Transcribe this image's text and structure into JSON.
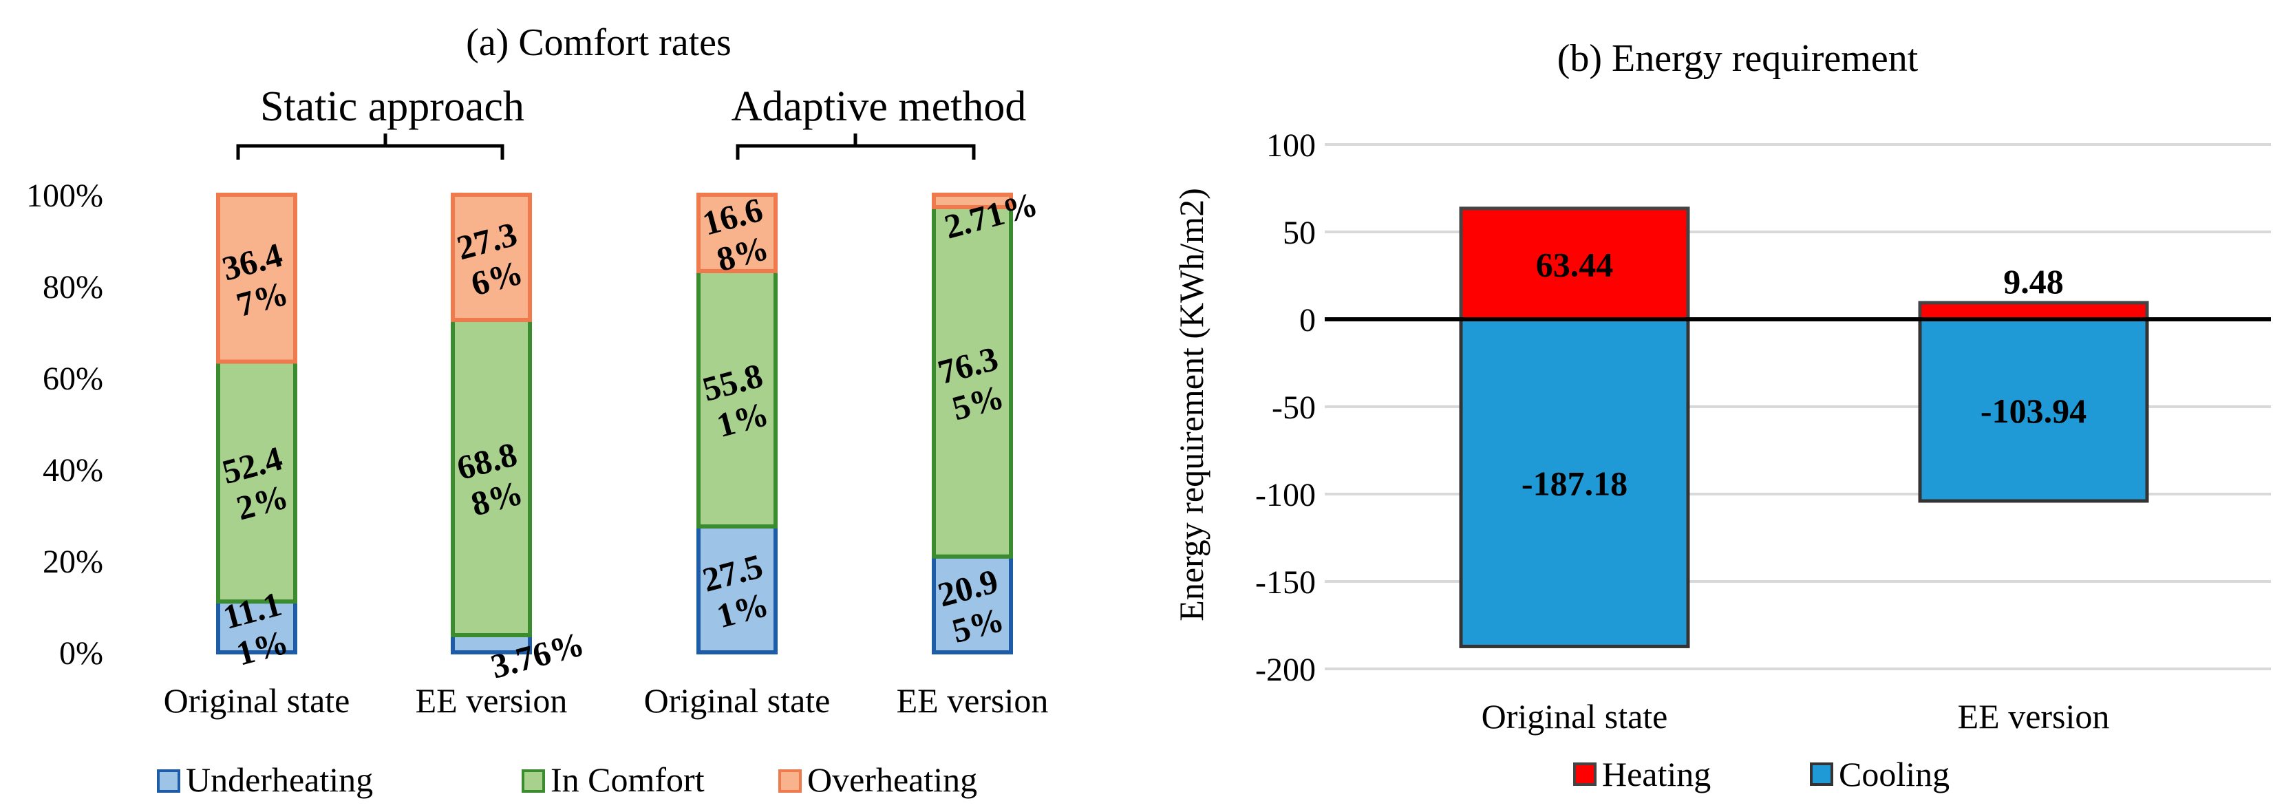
{
  "chart_data": [
    {
      "id": "comfort",
      "type": "bar",
      "stacked": true,
      "title": "(a) Comfort rates",
      "groups": [
        {
          "label": "Static approach",
          "bars": [
            0,
            1
          ]
        },
        {
          "label": "Adaptive method",
          "bars": [
            2,
            3
          ]
        }
      ],
      "categories": [
        "Original state",
        "EE version",
        "Original state",
        "EE version"
      ],
      "ylim": [
        0,
        100
      ],
      "yticks": [
        0,
        20,
        40,
        60,
        80,
        100
      ],
      "ytick_labels": [
        "0%",
        "20%",
        "40%",
        "60%",
        "80%",
        "100%"
      ],
      "series": [
        {
          "name": "Underheating",
          "color": "#9dc3e6",
          "edge": "#1f5ca8",
          "values": [
            11.11,
            3.76,
            27.51,
            20.95
          ],
          "labels": [
            [
              "11.1",
              "1%"
            ],
            [
              "3.76%"
            ],
            [
              "27.5",
              "1%"
            ],
            [
              "20.9",
              "5%"
            ]
          ]
        },
        {
          "name": "In Comfort",
          "color": "#a9d18e",
          "edge": "#3a8c2f",
          "values": [
            52.42,
            68.88,
            55.81,
            76.35
          ],
          "labels": [
            [
              "52.4",
              "2%"
            ],
            [
              "68.8",
              "8%"
            ],
            [
              "55.8",
              "1%"
            ],
            [
              "76.3",
              "5%"
            ]
          ]
        },
        {
          "name": "Overheating",
          "color": "#f8b38d",
          "edge": "#ef7a4d",
          "values": [
            36.47,
            27.36,
            16.68,
            2.71
          ],
          "labels": [
            [
              "36.4",
              "7%"
            ],
            [
              "27.3",
              "6%"
            ],
            [
              "16.6",
              "8%"
            ],
            [
              "2.71%"
            ]
          ]
        }
      ]
    },
    {
      "id": "energy",
      "type": "bar",
      "stacked": true,
      "title": "(b) Energy requirement",
      "ylabel": "Energy requirement (KWh/m2)",
      "categories": [
        "Original state",
        "EE version"
      ],
      "ylim": [
        -200,
        100
      ],
      "yticks": [
        -200,
        -150,
        -100,
        -50,
        0,
        50,
        100
      ],
      "ytick_labels": [
        "-200",
        "-150",
        "-100",
        "-50",
        "0",
        "50",
        "100"
      ],
      "series": [
        {
          "name": "Heating",
          "color": "#ff0000",
          "edge": "#444444",
          "values": [
            63.44,
            9.48
          ],
          "labels": [
            "63.44",
            "9.48"
          ]
        },
        {
          "name": "Cooling",
          "color": "#1f9ad6",
          "edge": "#333333",
          "values": [
            -187.18,
            -103.94
          ],
          "labels": [
            "-187.18",
            "-103.94"
          ]
        }
      ]
    }
  ]
}
